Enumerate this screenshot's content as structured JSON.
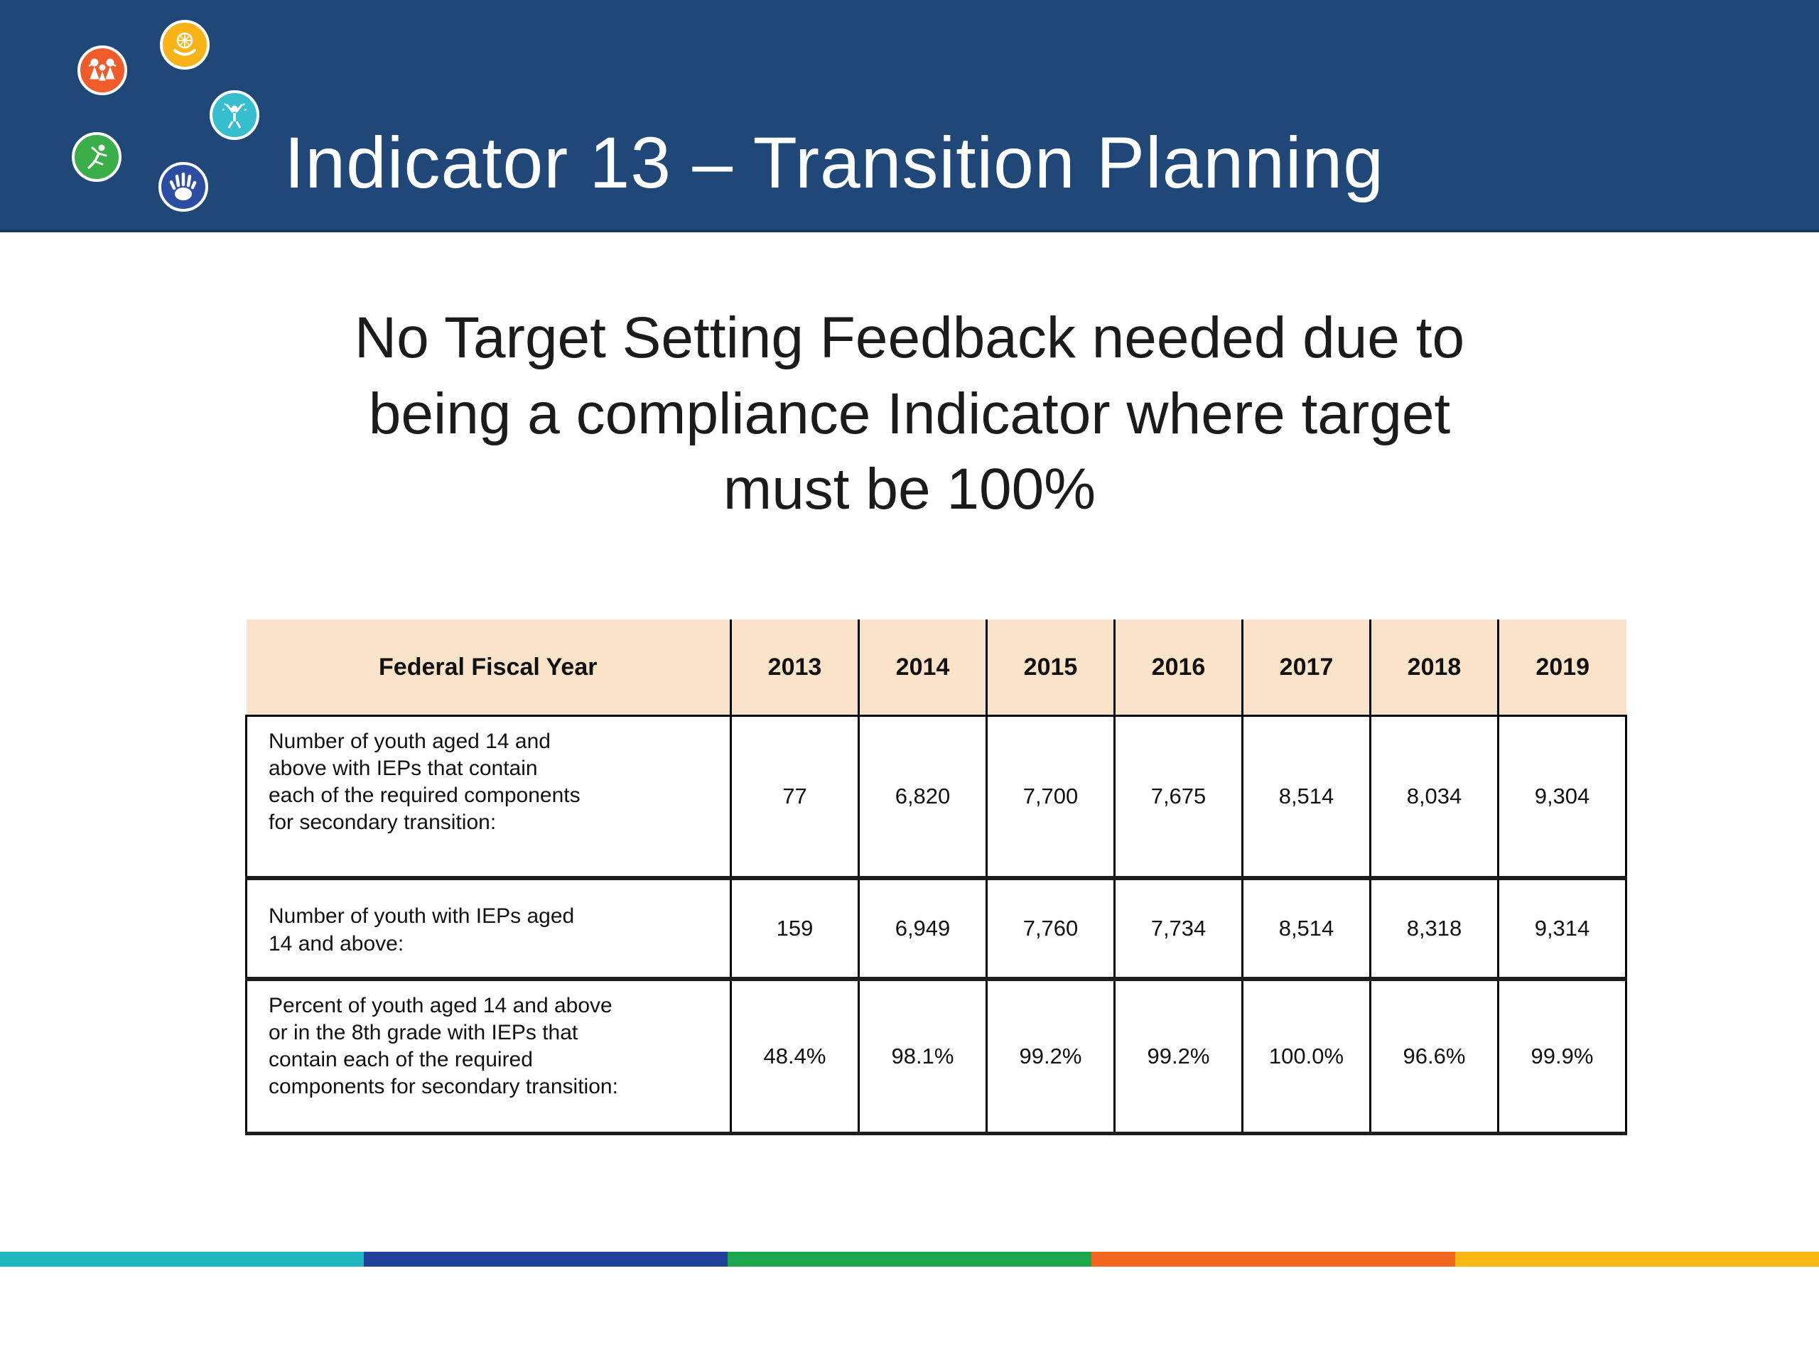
{
  "banner": {
    "title": "Indicator 13 – Transition Planning",
    "background": "#1F4878",
    "edge_line": "#16395E",
    "title_color": "#FFFFFF"
  },
  "logo": {
    "blade_colors": [
      "#F9AE17",
      "#2BB3C6",
      "#2565AE",
      "#2EA34B",
      "#F26A21"
    ],
    "hole_color": "#1F4878",
    "badge_colors": {
      "family": "#F15A29",
      "hand_compass": "#F9B317",
      "celebration": "#35BFCE",
      "open_hand": "#2B4EA2",
      "leaping_person": "#3AAE49"
    }
  },
  "heading": {
    "text": "No Target Setting Feedback needed due to\nbeing a compliance Indicator where target\nmust be 100%",
    "color": "#1B1B1B"
  },
  "table": {
    "header_background": "#FAE3C8",
    "border_color": "#000000",
    "header": [
      "Federal Fiscal Year",
      "2013",
      "2014",
      "2015",
      "2016",
      "2017",
      "2018",
      "2019"
    ],
    "rows": [
      {
        "label": "Number of youth aged 14 and\nabove with IEPs that contain\neach of the required components\nfor secondary transition:",
        "values": [
          "77",
          "6,820",
          "7,700",
          "7,675",
          "8,514",
          "8,034",
          "9,304"
        ]
      },
      {
        "label": "Number of youth with IEPs aged\n14 and above:",
        "values": [
          "159",
          "6,949",
          "7,760",
          "7,734",
          "8,514",
          "8,318",
          "9,314"
        ]
      },
      {
        "label": "Percent of youth aged 14 and above\nor in the 8th grade with IEPs that\ncontain each of the required\ncomponents for secondary transition:",
        "values": [
          "48.4%",
          "98.1%",
          "99.2%",
          "99.2%",
          "100.0%",
          "96.6%",
          "99.9%"
        ]
      }
    ]
  },
  "footer_bar": {
    "segments": [
      "#20B7C1",
      "#21409A",
      "#1CA64E",
      "#F3661F",
      "#FDB714"
    ]
  }
}
